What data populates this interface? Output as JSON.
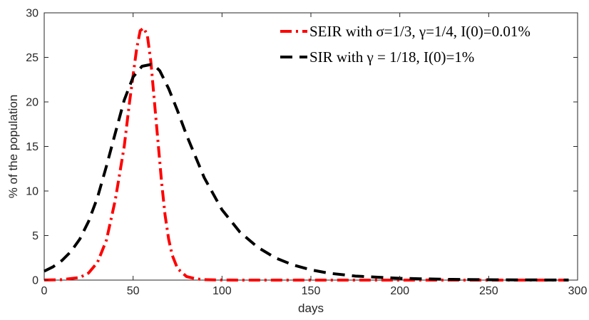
{
  "chart_data": {
    "type": "line",
    "xlabel": "days",
    "ylabel": "% of the population",
    "xlim": [
      0,
      300
    ],
    "ylim": [
      0,
      30
    ],
    "xticks": [
      0,
      50,
      100,
      150,
      200,
      250,
      300
    ],
    "yticks": [
      0,
      5,
      10,
      15,
      20,
      25,
      30
    ],
    "xtick_labels": [
      "0",
      "50",
      "100",
      "150",
      "200",
      "250",
      "300"
    ],
    "ytick_labels": [
      "0",
      "5",
      "10",
      "15",
      "20",
      "25",
      "30"
    ],
    "grid": false,
    "legend_position": "top-right",
    "series": [
      {
        "name": "SEIR with σ=1/3, γ=1/4, I(0)=0.01%",
        "color": "#ff0000",
        "style": "dash-dot",
        "x": [
          0,
          10,
          20,
          25,
          30,
          35,
          40,
          45,
          48,
          50,
          52,
          54,
          56,
          58,
          60,
          62,
          64,
          66,
          68,
          70,
          72,
          75,
          80,
          85,
          90,
          100,
          120,
          150,
          200,
          250,
          295
        ],
        "y": [
          0.01,
          0.05,
          0.3,
          0.8,
          2,
          4.5,
          9,
          15,
          20,
          23,
          26,
          28,
          28.3,
          27.5,
          24.5,
          20,
          15.5,
          11,
          7.3,
          4.6,
          2.8,
          1.3,
          0.4,
          0.15,
          0.05,
          0.01,
          0,
          0,
          0,
          0,
          0
        ]
      },
      {
        "name": "SIR with γ = 1/18, I(0)=1%",
        "color": "#000000",
        "style": "dashed",
        "x": [
          0,
          5,
          10,
          15,
          20,
          25,
          30,
          35,
          40,
          45,
          50,
          55,
          60,
          62,
          65,
          70,
          75,
          80,
          90,
          100,
          110,
          120,
          130,
          140,
          150,
          160,
          175,
          200,
          225,
          250,
          275,
          295
        ],
        "y": [
          1,
          1.5,
          2.2,
          3.2,
          4.6,
          6.6,
          9.3,
          12.8,
          16.5,
          20.2,
          22.8,
          24,
          24.2,
          24.1,
          23.5,
          21.5,
          19,
          16.3,
          11.5,
          7.9,
          5.4,
          3.7,
          2.5,
          1.7,
          1.15,
          0.78,
          0.45,
          0.2,
          0.09,
          0.04,
          0.02,
          0.01
        ]
      }
    ]
  }
}
